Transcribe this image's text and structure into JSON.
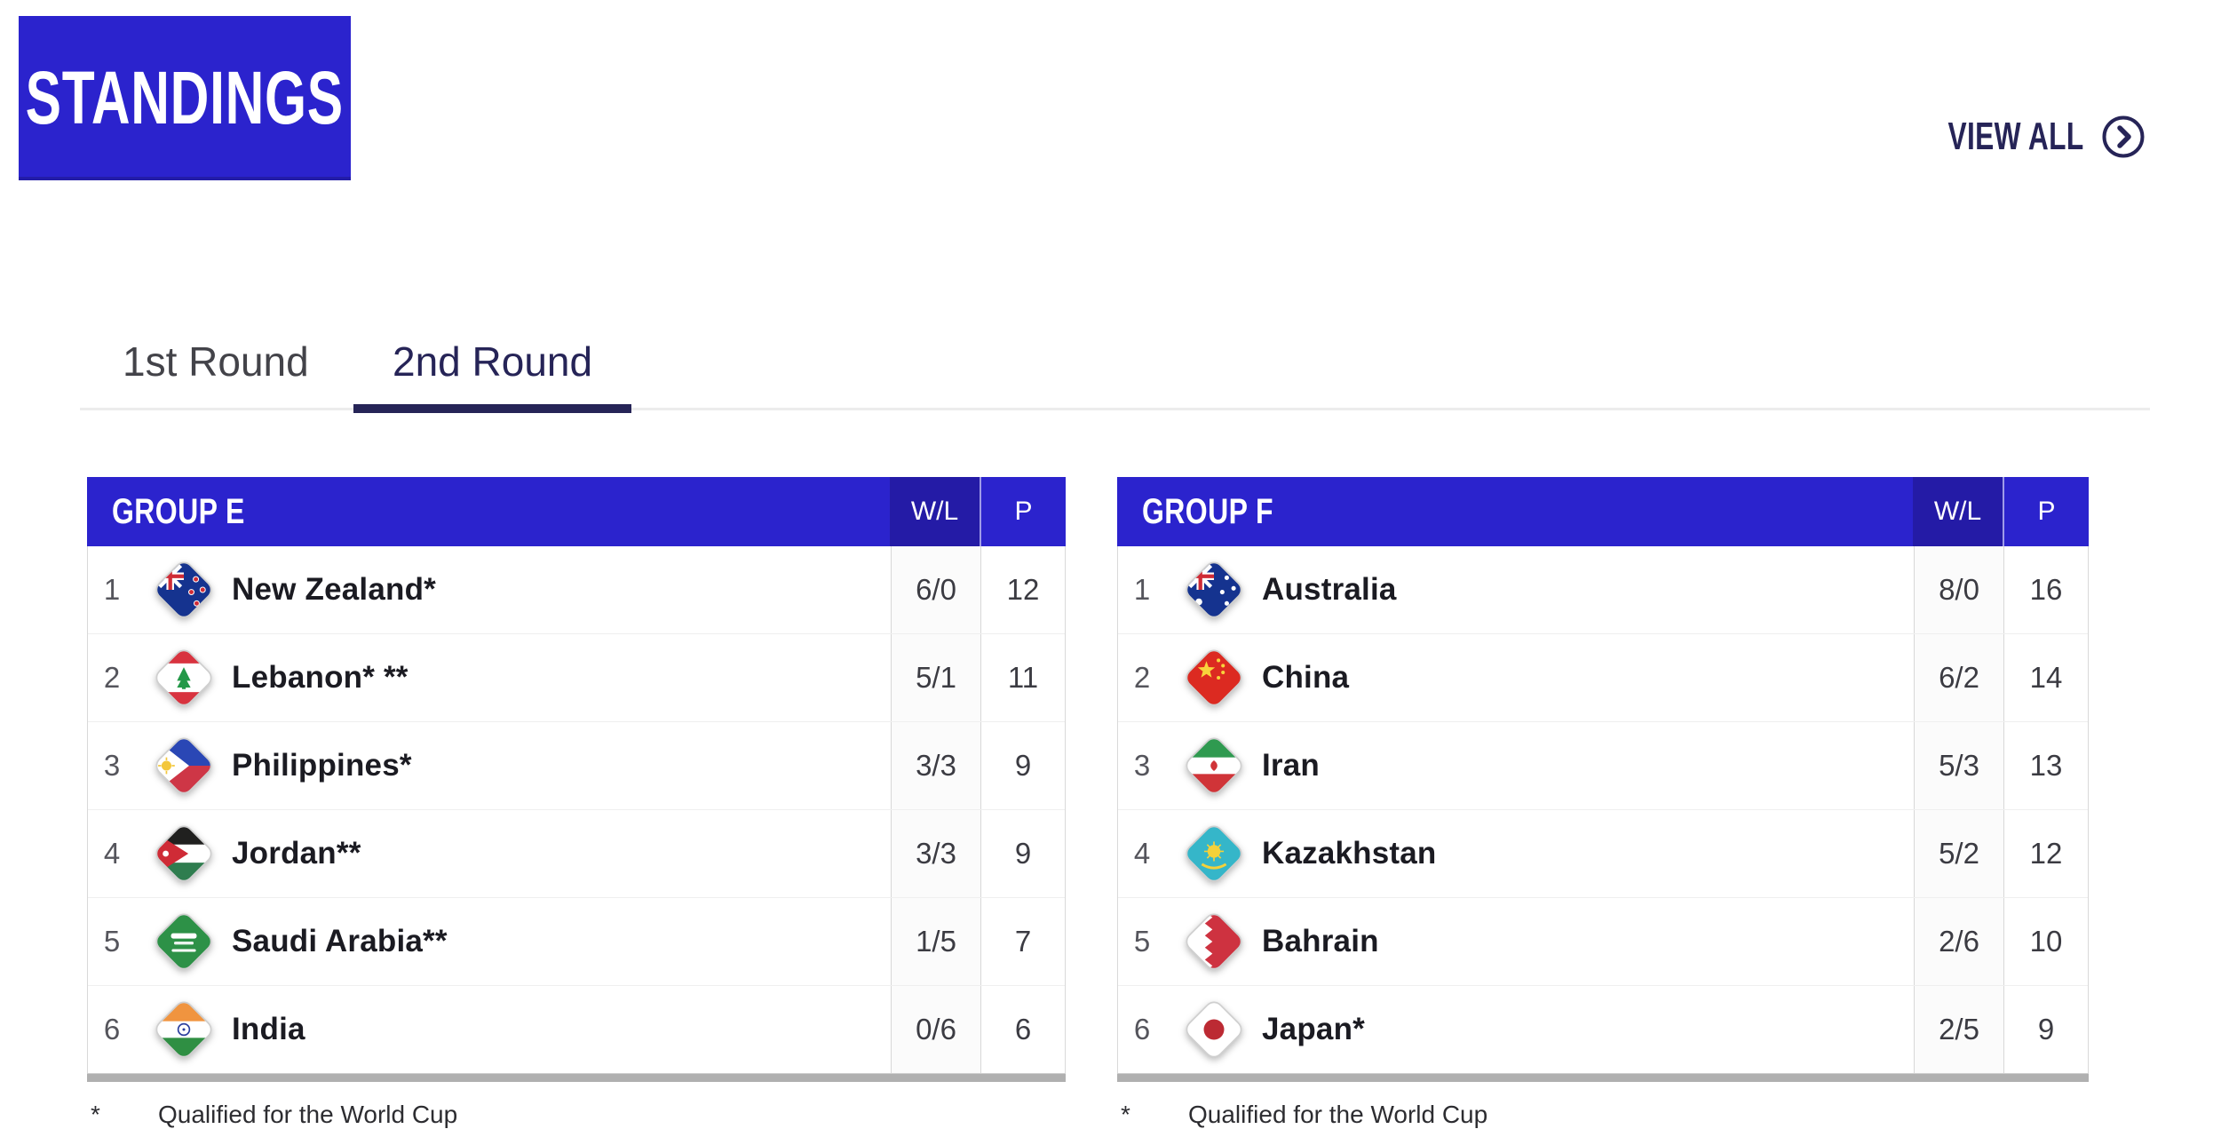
{
  "colors": {
    "primary_blue": "#2b23cd",
    "primary_blue_dark": "#241ba6",
    "navy": "#262457",
    "tab_inactive": "#434349",
    "team_text": "#1b1b22",
    "value_text": "#3b3b42",
    "rank_text": "#55555c",
    "scrollbar_gray": "#b0b0b0"
  },
  "header": {
    "title": "STANDINGS",
    "view_all": "VIEW ALL"
  },
  "tabs": [
    {
      "label": "1st Round",
      "active": false
    },
    {
      "label": "2nd Round",
      "active": true
    }
  ],
  "table_columns": {
    "wl": "W/L",
    "points": "P"
  },
  "groups": [
    {
      "title": "GROUP E",
      "footnote_marker": "*",
      "footnote": "Qualified for the World Cup",
      "rows": [
        {
          "rank": "1",
          "flag": "new-zealand",
          "team": "New Zealand*",
          "wl": "6/0",
          "points": "12"
        },
        {
          "rank": "2",
          "flag": "lebanon",
          "team": "Lebanon* **",
          "wl": "5/1",
          "points": "11"
        },
        {
          "rank": "3",
          "flag": "philippines",
          "team": "Philippines*",
          "wl": "3/3",
          "points": "9"
        },
        {
          "rank": "4",
          "flag": "jordan",
          "team": "Jordan**",
          "wl": "3/3",
          "points": "9"
        },
        {
          "rank": "5",
          "flag": "saudi-arabia",
          "team": "Saudi Arabia**",
          "wl": "1/5",
          "points": "7"
        },
        {
          "rank": "6",
          "flag": "india",
          "team": "India",
          "wl": "0/6",
          "points": "6"
        }
      ]
    },
    {
      "title": "GROUP F",
      "footnote_marker": "*",
      "footnote": "Qualified for the World Cup",
      "rows": [
        {
          "rank": "1",
          "flag": "australia",
          "team": "Australia",
          "wl": "8/0",
          "points": "16"
        },
        {
          "rank": "2",
          "flag": "china",
          "team": "China",
          "wl": "6/2",
          "points": "14"
        },
        {
          "rank": "3",
          "flag": "iran",
          "team": "Iran",
          "wl": "5/3",
          "points": "13"
        },
        {
          "rank": "4",
          "flag": "kazakhstan",
          "team": "Kazakhstan",
          "wl": "5/2",
          "points": "12"
        },
        {
          "rank": "5",
          "flag": "bahrain",
          "team": "Bahrain",
          "wl": "2/6",
          "points": "10"
        },
        {
          "rank": "6",
          "flag": "japan",
          "team": "Japan*",
          "wl": "2/5",
          "points": "9"
        }
      ]
    }
  ]
}
